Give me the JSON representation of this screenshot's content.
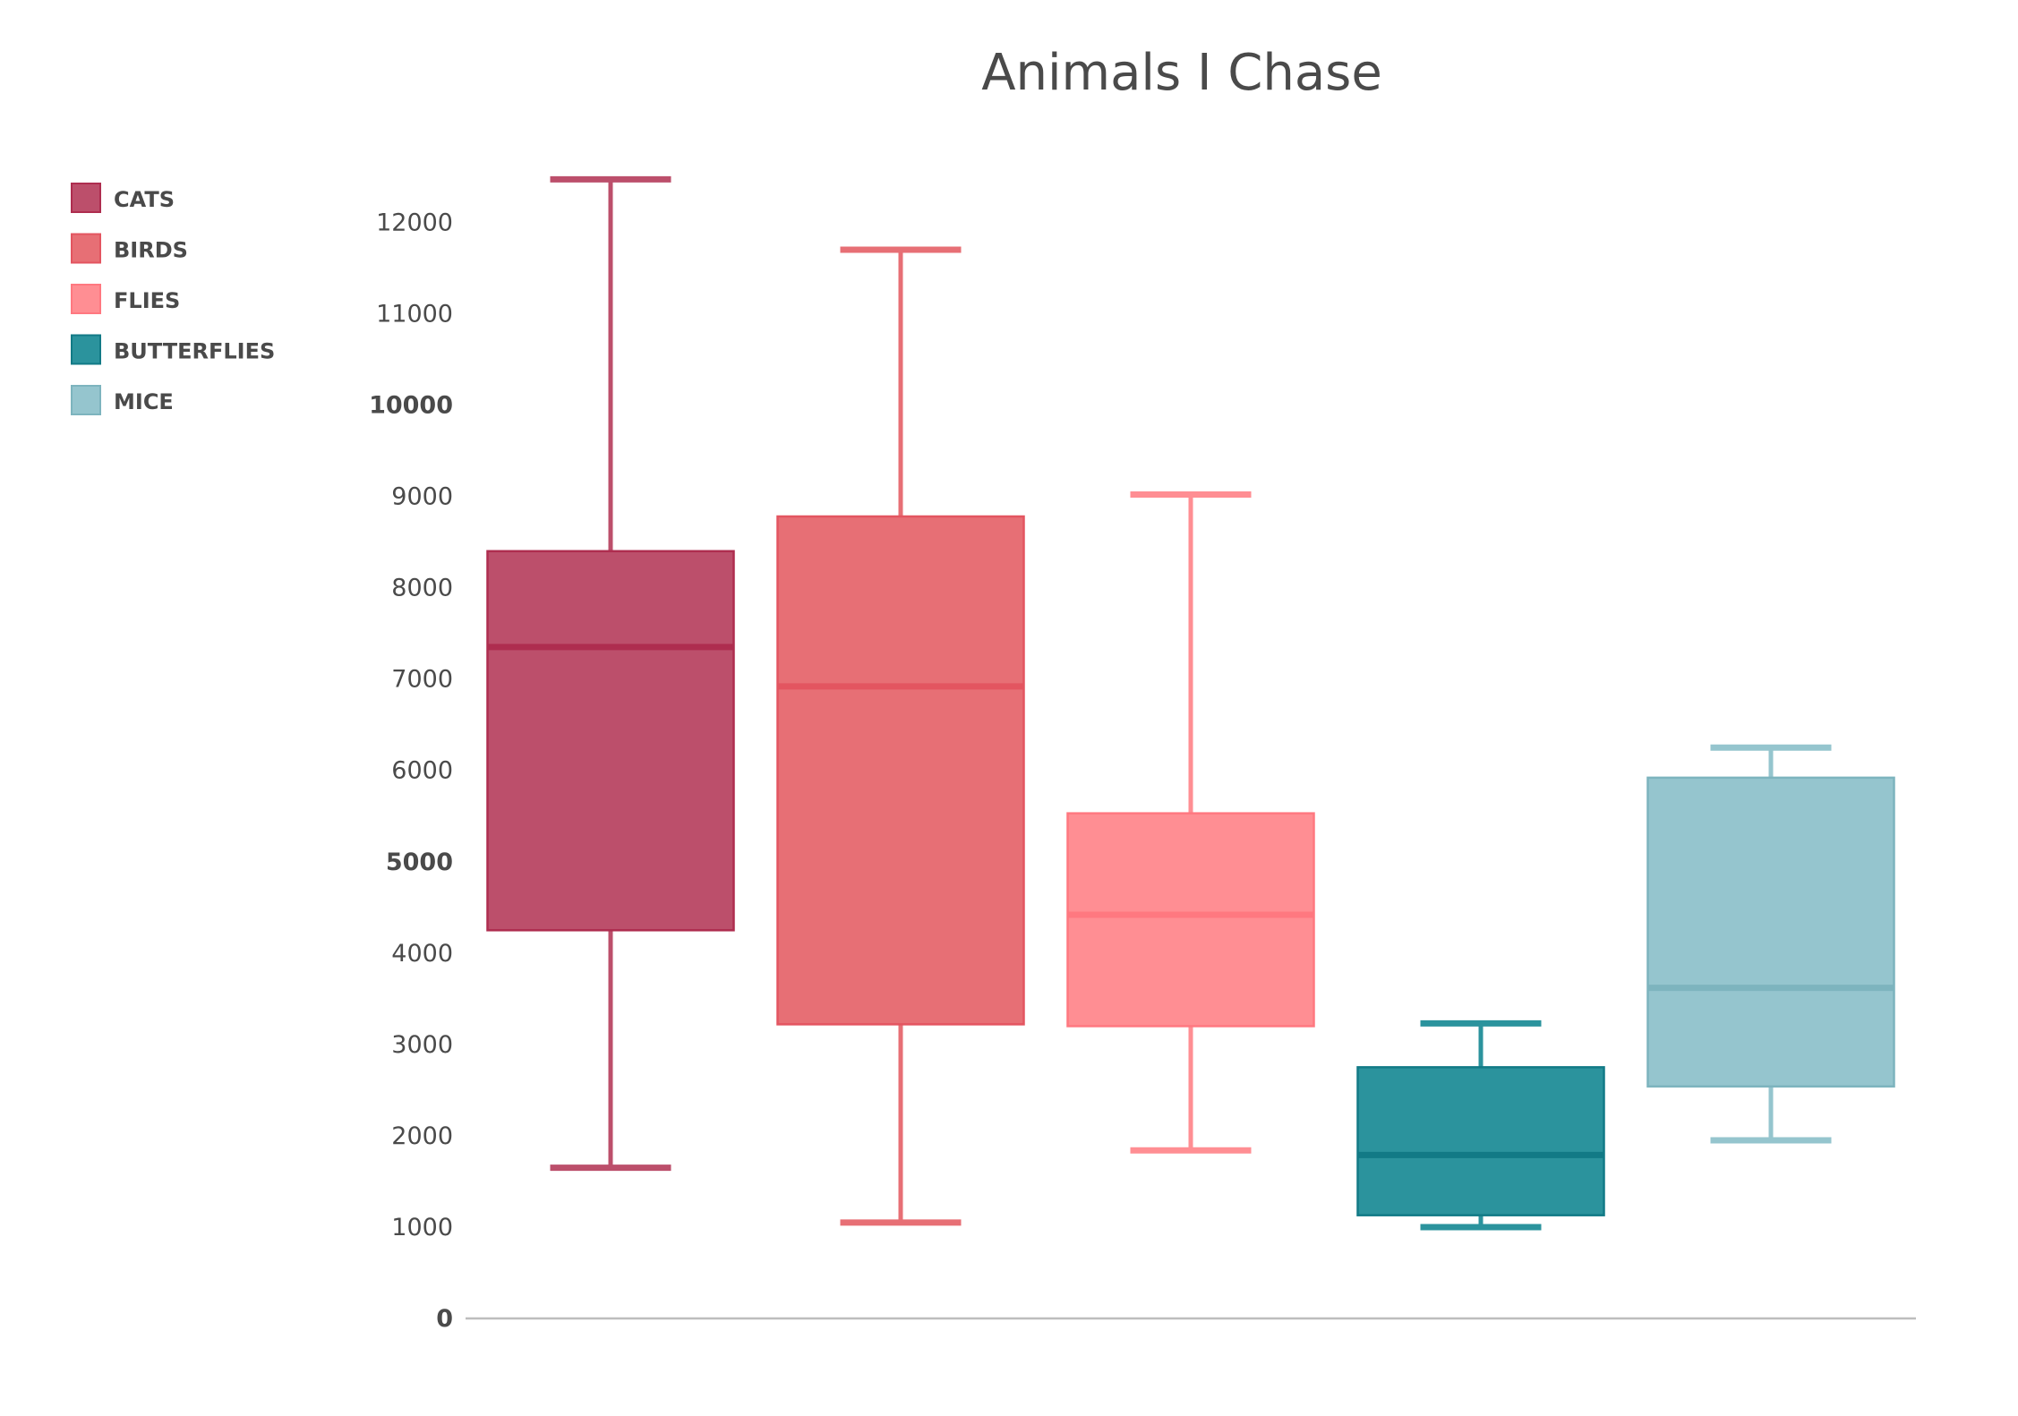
{
  "chart_data": {
    "type": "box",
    "title": "Animals I Chase",
    "xlabel": "",
    "ylabel": "",
    "ylim": [
      0,
      12600
    ],
    "y_ticks": [
      0,
      1000,
      2000,
      3000,
      4000,
      5000,
      6000,
      7000,
      8000,
      9000,
      10000,
      11000,
      12000
    ],
    "y_ticks_bold": [
      0,
      5000,
      10000
    ],
    "grid": false,
    "legend_position": "top-left",
    "series": [
      {
        "name": "CATS",
        "color": "#BC4F6B",
        "median_color": "#AE2D4F",
        "whisker_low": 1650,
        "q1": 4250,
        "median": 7350,
        "q3": 8400,
        "whisker_high": 12470
      },
      {
        "name": "BIRDS",
        "color": "#E76F75",
        "median_color": "#E35560",
        "whisker_low": 1050,
        "q1": 3220,
        "median": 6920,
        "q3": 8780,
        "whisker_high": 11700
      },
      {
        "name": "FLIES",
        "color": "#FF8E93",
        "median_color": "#FF7880",
        "whisker_low": 1840,
        "q1": 3200,
        "median": 4420,
        "q3": 5530,
        "whisker_high": 9020
      },
      {
        "name": "BUTTERFLIES",
        "color": "#2B939D",
        "median_color": "#127A86",
        "whisker_low": 1000,
        "q1": 1130,
        "median": 1790,
        "q3": 2750,
        "whisker_high": 3230
      },
      {
        "name": "MICE",
        "color": "#95C5CE",
        "median_color": "#7DB4BE",
        "whisker_low": 1950,
        "q1": 2540,
        "median": 3620,
        "q3": 5920,
        "whisker_high": 6250
      }
    ]
  },
  "colors": {
    "title": "#4A4A4A",
    "tick_label": "#4A4A4A",
    "legend_label": "#4A4A4A",
    "axis_line": "#BDBDBD",
    "background": "#FFFFFF"
  }
}
